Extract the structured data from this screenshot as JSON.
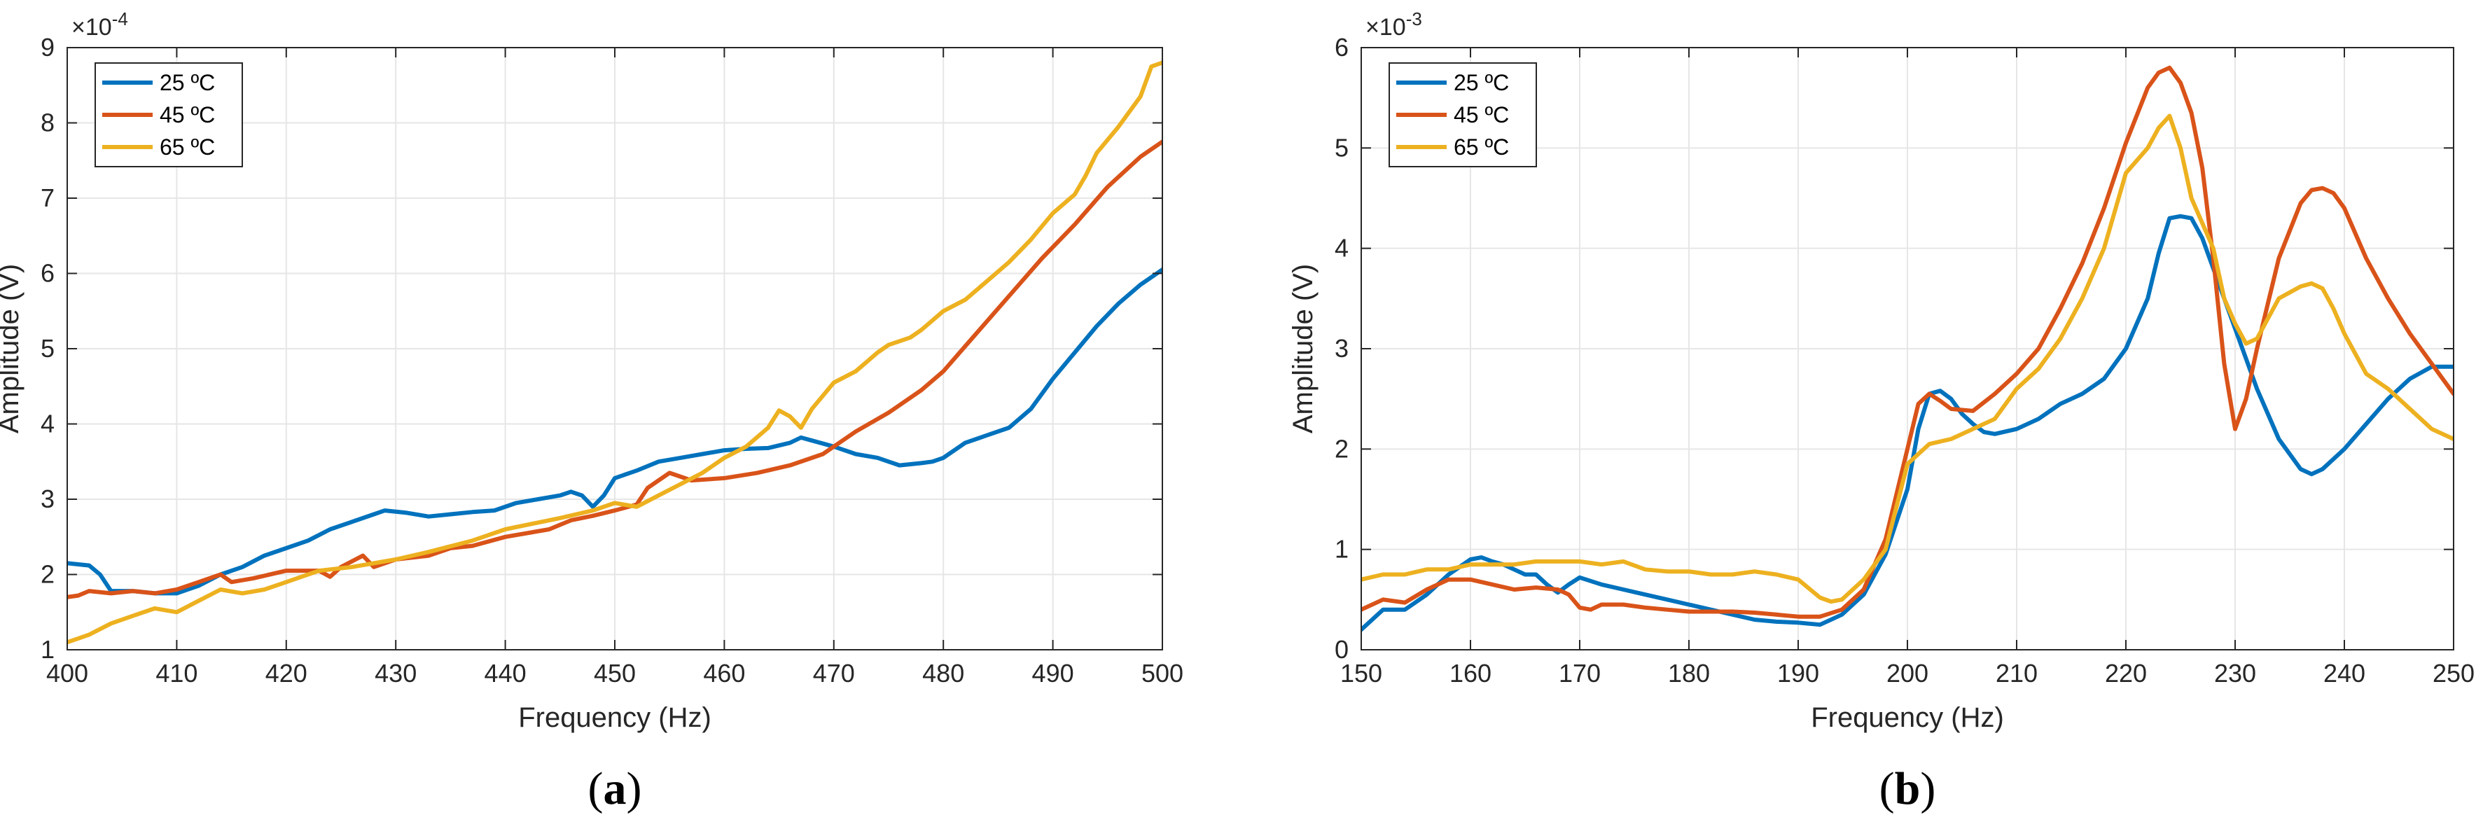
{
  "figure": {
    "style": {
      "grid_color": "#e6e6e6",
      "axis_color": "#262626",
      "legend_border": "#262626"
    },
    "panels": [
      {
        "caption": {
          "open": "(",
          "letter": "a",
          "close": ")"
        },
        "exponent_label": "×10",
        "exponent_power": "-4"
      },
      {
        "caption": {
          "open": "(",
          "letter": "b",
          "close": ")"
        },
        "exponent_label": "×10",
        "exponent_power": "-3"
      }
    ]
  },
  "chart_data": [
    {
      "type": "line",
      "title": "",
      "xlabel": "Frequency (Hz)",
      "ylabel": "Amplitude (V)",
      "xlim": [
        400,
        500
      ],
      "ylim": [
        1,
        9
      ],
      "xticks": [
        "400",
        "410",
        "420",
        "430",
        "440",
        "450",
        "460",
        "470",
        "480",
        "490",
        "500"
      ],
      "yticks": [
        "1",
        "2",
        "3",
        "4",
        "5",
        "6",
        "7",
        "8",
        "9"
      ],
      "grid": true,
      "legend_position": "top-left",
      "series": [
        {
          "name": "25 ºC",
          "color": "#0072BD",
          "x": [
            400,
            402,
            403,
            404,
            406,
            408,
            410,
            412,
            414,
            416,
            418,
            420,
            422,
            424,
            426,
            428,
            429,
            431,
            433,
            435,
            437,
            439,
            441,
            443,
            445,
            446,
            447,
            448,
            449,
            450,
            452,
            454,
            456,
            458,
            460,
            462,
            464,
            466,
            467,
            468,
            470,
            472,
            474,
            475,
            476,
            478,
            479,
            480,
            482,
            484,
            486,
            488,
            490,
            492,
            494,
            496,
            498,
            500
          ],
          "y": [
            2.15,
            2.12,
            2.0,
            1.78,
            1.78,
            1.75,
            1.75,
            1.85,
            2.0,
            2.1,
            2.25,
            2.35,
            2.45,
            2.6,
            2.7,
            2.8,
            2.85,
            2.82,
            2.77,
            2.8,
            2.83,
            2.85,
            2.95,
            3.0,
            3.05,
            3.1,
            3.05,
            2.9,
            3.05,
            3.28,
            3.38,
            3.5,
            3.55,
            3.6,
            3.65,
            3.67,
            3.68,
            3.75,
            3.82,
            3.78,
            3.7,
            3.6,
            3.55,
            3.5,
            3.45,
            3.48,
            3.5,
            3.55,
            3.75,
            3.85,
            3.95,
            4.2,
            4.6,
            4.95,
            5.3,
            5.6,
            5.85,
            6.05
          ]
        },
        {
          "name": "45 ºC",
          "color": "#D95319",
          "x": [
            400,
            401,
            402,
            404,
            406,
            408,
            410,
            412,
            414,
            415,
            417,
            420,
            423,
            424,
            425,
            427,
            428,
            430,
            433,
            435,
            437,
            440,
            444,
            446,
            448,
            450,
            452,
            453,
            455,
            457,
            460,
            463,
            466,
            469,
            472,
            475,
            478,
            480,
            483,
            486,
            489,
            492,
            495,
            498,
            500
          ],
          "y": [
            1.7,
            1.72,
            1.78,
            1.75,
            1.78,
            1.75,
            1.8,
            1.9,
            2.0,
            1.9,
            1.95,
            2.05,
            2.05,
            1.97,
            2.1,
            2.25,
            2.1,
            2.2,
            2.25,
            2.35,
            2.38,
            2.5,
            2.6,
            2.72,
            2.78,
            2.85,
            2.93,
            3.15,
            3.35,
            3.25,
            3.28,
            3.35,
            3.45,
            3.6,
            3.9,
            4.15,
            4.45,
            4.7,
            5.2,
            5.7,
            6.2,
            6.65,
            7.15,
            7.55,
            7.75
          ]
        },
        {
          "name": "65 ºC",
          "color": "#EDB120",
          "x": [
            400,
            401,
            402,
            404,
            406,
            408,
            410,
            412,
            414,
            416,
            418,
            420,
            423,
            426,
            430,
            433,
            437,
            440,
            445,
            448,
            450,
            452,
            454,
            456,
            458,
            460,
            462,
            464,
            465,
            466,
            467,
            468,
            470,
            472,
            474,
            475,
            476,
            477,
            478,
            480,
            482,
            484,
            486,
            488,
            490,
            492,
            493,
            494,
            496,
            498,
            499,
            500
          ],
          "y": [
            1.1,
            1.15,
            1.2,
            1.35,
            1.45,
            1.55,
            1.5,
            1.65,
            1.8,
            1.75,
            1.8,
            1.9,
            2.05,
            2.1,
            2.2,
            2.3,
            2.45,
            2.6,
            2.75,
            2.85,
            2.95,
            2.9,
            3.05,
            3.2,
            3.35,
            3.55,
            3.7,
            3.95,
            4.18,
            4.1,
            3.95,
            4.2,
            4.55,
            4.7,
            4.95,
            5.05,
            5.1,
            5.15,
            5.25,
            5.5,
            5.65,
            5.9,
            6.15,
            6.45,
            6.8,
            7.05,
            7.3,
            7.6,
            7.95,
            8.35,
            8.75,
            8.8
          ]
        }
      ]
    },
    {
      "type": "line",
      "title": "",
      "xlabel": "Frequency (Hz)",
      "ylabel": "Amplitude (V)",
      "xlim": [
        150,
        250
      ],
      "ylim": [
        0,
        6
      ],
      "xticks": [
        "150",
        "160",
        "170",
        "180",
        "190",
        "200",
        "210",
        "220",
        "230",
        "240",
        "250"
      ],
      "yticks": [
        "0",
        "1",
        "2",
        "3",
        "4",
        "5",
        "6"
      ],
      "grid": true,
      "legend_position": "top-left",
      "series": [
        {
          "name": "25 ºC",
          "color": "#0072BD",
          "x": [
            150,
            152,
            154,
            156,
            158,
            160,
            161,
            162,
            163,
            164,
            165,
            166,
            167,
            168,
            169,
            170,
            172,
            174,
            176,
            178,
            180,
            182,
            184,
            186,
            188,
            190,
            192,
            194,
            196,
            198,
            200,
            201,
            202,
            203,
            204,
            205,
            206,
            207,
            208,
            210,
            212,
            214,
            216,
            218,
            220,
            222,
            223,
            224,
            225,
            226,
            227,
            228,
            230,
            232,
            234,
            236,
            237,
            238,
            240,
            242,
            244,
            246,
            248,
            250
          ],
          "y": [
            0.2,
            0.4,
            0.4,
            0.55,
            0.75,
            0.9,
            0.92,
            0.88,
            0.85,
            0.8,
            0.75,
            0.75,
            0.65,
            0.57,
            0.65,
            0.72,
            0.65,
            0.6,
            0.55,
            0.5,
            0.45,
            0.4,
            0.35,
            0.3,
            0.28,
            0.27,
            0.25,
            0.35,
            0.55,
            0.95,
            1.6,
            2.2,
            2.55,
            2.58,
            2.5,
            2.35,
            2.25,
            2.17,
            2.15,
            2.2,
            2.3,
            2.45,
            2.55,
            2.7,
            3.0,
            3.5,
            3.95,
            4.3,
            4.32,
            4.3,
            4.1,
            3.8,
            3.2,
            2.6,
            2.1,
            1.8,
            1.75,
            1.8,
            2.0,
            2.25,
            2.5,
            2.7,
            2.82,
            2.82
          ]
        },
        {
          "name": "45 ºC",
          "color": "#D95319",
          "x": [
            150,
            152,
            154,
            156,
            158,
            160,
            162,
            164,
            166,
            168,
            169,
            170,
            171,
            172,
            174,
            176,
            178,
            180,
            182,
            184,
            186,
            188,
            190,
            192,
            194,
            196,
            198,
            200,
            201,
            202,
            203,
            204,
            206,
            208,
            210,
            212,
            214,
            216,
            218,
            220,
            222,
            223,
            224,
            225,
            226,
            227,
            228,
            229,
            230,
            231,
            232,
            234,
            236,
            237,
            238,
            239,
            240,
            242,
            244,
            246,
            248,
            250
          ],
          "y": [
            0.4,
            0.5,
            0.47,
            0.6,
            0.7,
            0.7,
            0.65,
            0.6,
            0.62,
            0.6,
            0.55,
            0.42,
            0.4,
            0.45,
            0.45,
            0.42,
            0.4,
            0.38,
            0.38,
            0.38,
            0.37,
            0.35,
            0.33,
            0.33,
            0.4,
            0.6,
            1.1,
            2.0,
            2.45,
            2.55,
            2.48,
            2.4,
            2.38,
            2.55,
            2.75,
            3.0,
            3.4,
            3.85,
            4.4,
            5.05,
            5.6,
            5.75,
            5.8,
            5.65,
            5.35,
            4.8,
            3.9,
            2.85,
            2.2,
            2.5,
            3.0,
            3.9,
            4.45,
            4.58,
            4.6,
            4.55,
            4.4,
            3.9,
            3.5,
            3.15,
            2.85,
            2.55
          ]
        },
        {
          "name": "65 ºC",
          "color": "#EDB120",
          "x": [
            150,
            152,
            154,
            156,
            158,
            160,
            162,
            164,
            166,
            168,
            170,
            172,
            174,
            176,
            178,
            180,
            182,
            184,
            186,
            188,
            190,
            192,
            193,
            194,
            196,
            198,
            200,
            202,
            204,
            206,
            208,
            210,
            212,
            214,
            216,
            218,
            220,
            222,
            223,
            224,
            225,
            226,
            227,
            228,
            229,
            230,
            231,
            232,
            233,
            234,
            236,
            237,
            238,
            239,
            240,
            242,
            244,
            246,
            248,
            250
          ],
          "y": [
            0.7,
            0.75,
            0.75,
            0.8,
            0.8,
            0.85,
            0.85,
            0.85,
            0.88,
            0.88,
            0.88,
            0.85,
            0.88,
            0.8,
            0.78,
            0.78,
            0.75,
            0.75,
            0.78,
            0.75,
            0.7,
            0.52,
            0.48,
            0.5,
            0.7,
            1.0,
            1.85,
            2.05,
            2.1,
            2.2,
            2.3,
            2.6,
            2.8,
            3.1,
            3.5,
            4.0,
            4.75,
            5.0,
            5.2,
            5.32,
            5.0,
            4.5,
            4.25,
            4.0,
            3.5,
            3.25,
            3.05,
            3.1,
            3.3,
            3.5,
            3.62,
            3.65,
            3.6,
            3.4,
            3.15,
            2.75,
            2.6,
            2.4,
            2.2,
            2.1
          ]
        }
      ]
    }
  ]
}
